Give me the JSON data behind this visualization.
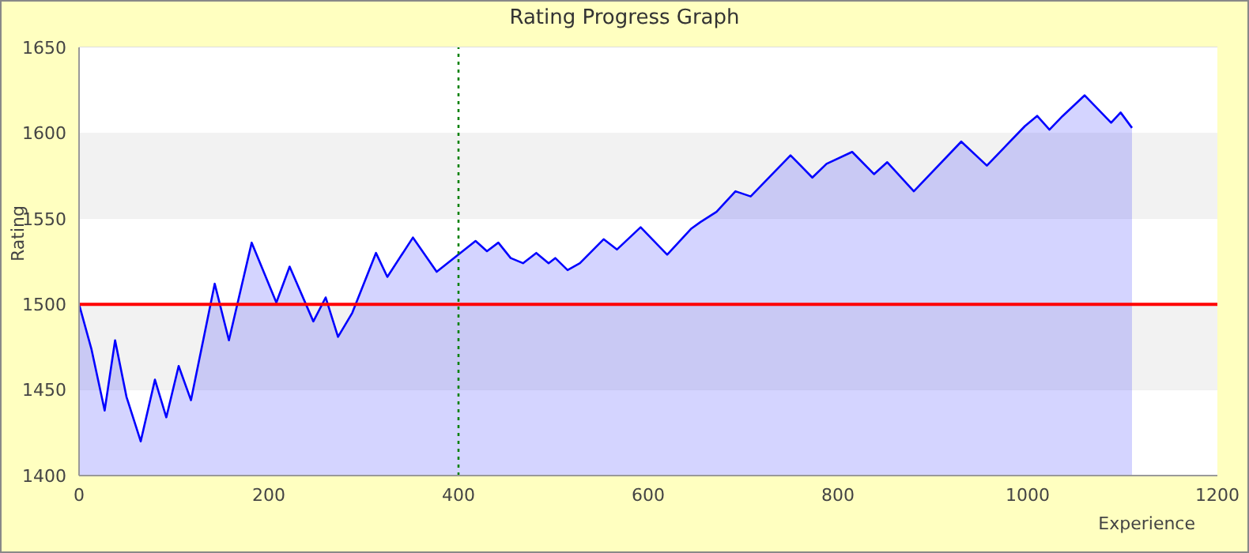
{
  "chart_data": {
    "type": "area",
    "title": "Rating Progress Graph",
    "xlabel": "Experience",
    "ylabel": "Rating",
    "x": [
      0,
      13,
      27,
      38,
      50,
      65,
      80,
      92,
      105,
      118,
      143,
      158,
      182,
      208,
      222,
      247,
      260,
      273,
      288,
      313,
      325,
      352,
      377,
      418,
      430,
      442,
      455,
      468,
      482,
      495,
      502,
      515,
      528,
      553,
      567,
      592,
      620,
      645,
      655,
      672,
      692,
      708,
      750,
      773,
      788,
      815,
      838,
      852,
      880,
      930,
      957,
      997,
      1010,
      1023,
      1037,
      1060,
      1088,
      1098,
      1110
    ],
    "series": [
      {
        "color": "#0000ff",
        "values": [
          1500,
          1474,
          1438,
          1479,
          1446,
          1420,
          1456,
          1434,
          1464,
          1444,
          1512,
          1479,
          1536,
          1501,
          1522,
          1490,
          1504,
          1481,
          1495,
          1530,
          1516,
          1539,
          1519,
          1537,
          1531,
          1536,
          1527,
          1524,
          1530,
          1524,
          1527,
          1520,
          1524,
          1538,
          1532,
          1545,
          1529,
          1544,
          1548,
          1554,
          1566,
          1563,
          1587,
          1574,
          1582,
          1589,
          1576,
          1583,
          1566,
          1595,
          1581,
          1604,
          1610,
          1602,
          1610,
          1622,
          1606,
          1612,
          1603
        ]
      }
    ],
    "ref_lines": [
      {
        "axis": "y",
        "value": 1500,
        "color": "#ff0000",
        "line_style": "solid"
      },
      {
        "axis": "x",
        "value": 400,
        "color": "#008000",
        "line_style": "dotted"
      }
    ],
    "xlim": [
      0,
      1200
    ],
    "xticks": [
      0,
      200,
      400,
      600,
      800,
      1000,
      1200
    ],
    "ylim": [
      1400,
      1650
    ],
    "yticks": [
      1400,
      1450,
      1500,
      1550,
      1600,
      1650
    ],
    "grid": "y",
    "legend": false,
    "marker": "none",
    "line_style": "solid"
  }
}
